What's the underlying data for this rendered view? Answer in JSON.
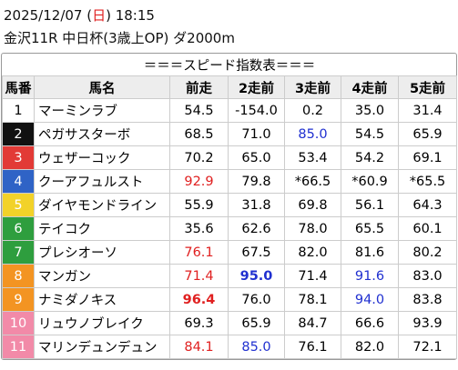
{
  "header": {
    "date": "2025/12/07 (",
    "weekday": "日",
    "time": ") 18:15",
    "race": "金沢11R 中日杯(3歳上OP) ダ2000m"
  },
  "table": {
    "title": "＝＝＝スピード指数表＝＝＝",
    "columns": [
      "馬番",
      "馬名",
      "前走",
      "2走前",
      "3走前",
      "4走前",
      "5走前"
    ],
    "rows": [
      {
        "num": "1",
        "name": "マーミンラブ",
        "scores": [
          "54.5",
          "-154.0",
          "0.2",
          "35.0",
          "31.4"
        ],
        "bg": "#ffffff",
        "fg": "#000000",
        "marks": {}
      },
      {
        "num": "2",
        "name": "ペガサスターボ",
        "scores": [
          "68.5",
          "71.0",
          "85.0",
          "54.5",
          "65.9"
        ],
        "bg": "#111111",
        "fg": "#ffffff",
        "marks": {
          "2": "blue"
        }
      },
      {
        "num": "3",
        "name": "ウェザーコック",
        "scores": [
          "70.2",
          "65.0",
          "53.4",
          "54.2",
          "69.1"
        ],
        "bg": "#e23a36",
        "fg": "#ffffff",
        "marks": {}
      },
      {
        "num": "4",
        "name": "クーアフュルスト",
        "scores": [
          "92.9",
          "79.8",
          "*66.5",
          "*60.9",
          "*65.5"
        ],
        "bg": "#2f63c6",
        "fg": "#ffffff",
        "marks": {
          "0": "red"
        }
      },
      {
        "num": "5",
        "name": "ダイヤモンドライン",
        "scores": [
          "55.9",
          "31.8",
          "69.8",
          "56.1",
          "64.3"
        ],
        "bg": "#f2d229",
        "fg": "#ffffff",
        "marks": {}
      },
      {
        "num": "6",
        "name": "テイコク",
        "scores": [
          "35.6",
          "62.6",
          "78.0",
          "65.5",
          "60.1"
        ],
        "bg": "#2e9e3e",
        "fg": "#ffffff",
        "marks": {}
      },
      {
        "num": "7",
        "name": "プレシオーソ",
        "scores": [
          "76.1",
          "67.5",
          "82.0",
          "81.6",
          "80.2"
        ],
        "bg": "#2e9e3e",
        "fg": "#ffffff",
        "marks": {
          "0": "red"
        }
      },
      {
        "num": "8",
        "name": "マンガン",
        "scores": [
          "71.4",
          "95.0",
          "71.4",
          "91.6",
          "83.0"
        ],
        "bg": "#f39422",
        "fg": "#ffffff",
        "marks": {
          "0": "red",
          "1": "blue-bold",
          "3": "blue"
        }
      },
      {
        "num": "9",
        "name": "ナミダノキス",
        "scores": [
          "96.4",
          "76.0",
          "78.1",
          "94.0",
          "83.8"
        ],
        "bg": "#f39422",
        "fg": "#ffffff",
        "marks": {
          "0": "red-bold",
          "3": "blue"
        }
      },
      {
        "num": "10",
        "name": "リュウノブレイク",
        "scores": [
          "69.3",
          "65.9",
          "84.7",
          "66.6",
          "93.9"
        ],
        "bg": "#f28aa8",
        "fg": "#ffffff",
        "marks": {}
      },
      {
        "num": "11",
        "name": "マリンデュンデュン",
        "scores": [
          "84.1",
          "85.0",
          "76.1",
          "82.0",
          "72.1"
        ],
        "bg": "#f28aa8",
        "fg": "#ffffff",
        "marks": {
          "0": "red",
          "1": "blue"
        }
      }
    ]
  }
}
